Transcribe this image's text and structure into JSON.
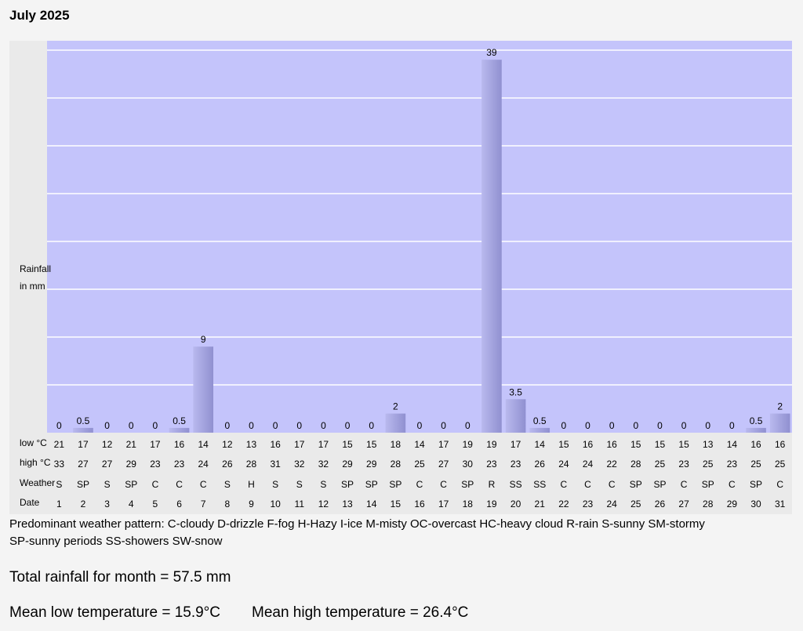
{
  "page": {
    "title": "July 2025",
    "legend_line1": "Predominant weather pattern: C-cloudy D-drizzle F-fog H-Hazy I-ice M-misty OC-overcast HC-heavy cloud R-rain S-sunny SM-stormy",
    "legend_line2": "SP-sunny periods SS-showers SW-snow",
    "total_rainfall": "Total rainfall for month = 57.5 mm",
    "mean_low": "Mean low temperature = 15.9°C",
    "mean_high": "Mean high temperature = 26.4°C"
  },
  "colors": {
    "plot_bg": "#c4c4fb",
    "bar": "#9a9ad6",
    "bar_light": "#b7b7ec",
    "panel": "#eaeaea",
    "gridline": "#ffffff"
  },
  "chart_data": {
    "type": "bar",
    "ylabel_line1": "Rainfall",
    "ylabel_line2": "in mm",
    "ylim": [
      0,
      40
    ],
    "grid": true,
    "categories": [
      "1",
      "2",
      "3",
      "4",
      "5",
      "6",
      "7",
      "8",
      "9",
      "10",
      "11",
      "12",
      "13",
      "14",
      "15",
      "16",
      "17",
      "18",
      "19",
      "20",
      "21",
      "22",
      "23",
      "24",
      "25",
      "26",
      "27",
      "28",
      "29",
      "30",
      "31"
    ],
    "values": [
      0,
      0.5,
      0,
      0,
      0,
      0.5,
      9,
      0,
      0,
      0,
      0,
      0,
      0,
      0,
      2,
      0,
      0,
      0,
      39,
      3.5,
      0.5,
      0,
      0,
      0,
      0,
      0,
      0,
      0,
      0,
      0.5,
      2
    ],
    "value_labels": [
      "0",
      "0.5",
      "0",
      "0",
      "0",
      "0.5",
      "9",
      "0",
      "0",
      "0",
      "0",
      "0",
      "0",
      "0",
      "2",
      "0",
      "0",
      "0",
      "39",
      "3.5",
      "0.5",
      "0",
      "0",
      "0",
      "0",
      "0",
      "0",
      "0",
      "0",
      "0.5",
      "2"
    ],
    "rows": [
      {
        "label": "low °C",
        "values": [
          "21",
          "17",
          "12",
          "21",
          "17",
          "16",
          "14",
          "12",
          "13",
          "16",
          "17",
          "17",
          "15",
          "15",
          "18",
          "14",
          "17",
          "19",
          "19",
          "17",
          "14",
          "15",
          "16",
          "16",
          "15",
          "15",
          "15",
          "13",
          "14",
          "16",
          "16"
        ]
      },
      {
        "label": "high °C",
        "values": [
          "33",
          "27",
          "27",
          "29",
          "23",
          "23",
          "24",
          "26",
          "28",
          "31",
          "32",
          "32",
          "29",
          "29",
          "28",
          "25",
          "27",
          "30",
          "23",
          "23",
          "26",
          "24",
          "24",
          "22",
          "28",
          "25",
          "23",
          "25",
          "23",
          "25",
          "25"
        ]
      },
      {
        "label": "Weather",
        "values": [
          "S",
          "SP",
          "S",
          "SP",
          "C",
          "C",
          "C",
          "S",
          "H",
          "S",
          "S",
          "S",
          "SP",
          "SP",
          "SP",
          "C",
          "C",
          "SP",
          "R",
          "SS",
          "SS",
          "C",
          "C",
          "C",
          "SP",
          "SP",
          "C",
          "SP",
          "C",
          "SP",
          "C"
        ]
      },
      {
        "label": "Date",
        "values": [
          "1",
          "2",
          "3",
          "4",
          "5",
          "6",
          "7",
          "8",
          "9",
          "10",
          "11",
          "12",
          "13",
          "14",
          "15",
          "16",
          "17",
          "18",
          "19",
          "20",
          "21",
          "22",
          "23",
          "24",
          "25",
          "26",
          "27",
          "28",
          "29",
          "30",
          "31"
        ]
      }
    ]
  }
}
